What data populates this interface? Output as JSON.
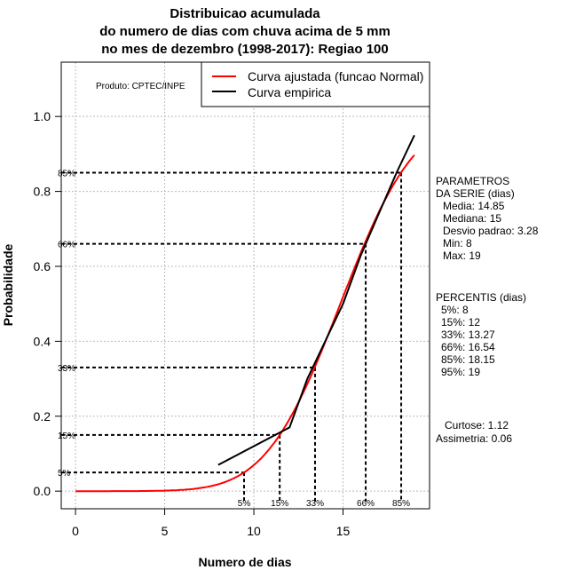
{
  "chart_data": {
    "type": "line",
    "title": [
      "Distribuicao acumulada",
      "do numero de dias com chuva acima de 5 mm",
      "no mes de dezembro (1998-2017): Regiao 100"
    ],
    "xlabel": "Numero de dias",
    "ylabel": "Probabilidade",
    "xlim": [
      -0.8,
      19.85
    ],
    "ylim": [
      -0.047,
      1.145
    ],
    "xticks": [
      0,
      5,
      10,
      15
    ],
    "yticks": [
      "0.0",
      "0.2",
      "0.4",
      "0.6",
      "0.8",
      "1.0"
    ],
    "grid": true,
    "legend_position": "top-right",
    "product_note": "Produto: CPTEC/INPE",
    "series": [
      {
        "name": "Curva ajustada (funcao Normal)",
        "color": "#ff0000",
        "type": "normal_cdf",
        "mean": 14.85,
        "sd": 3.28,
        "x_range": [
          0,
          19
        ]
      },
      {
        "name": "Curva empirica",
        "color": "#000000",
        "x": [
          8,
          12,
          13,
          14,
          15,
          16,
          17,
          18,
          19
        ],
        "y": [
          0.07,
          0.17,
          0.3,
          0.4,
          0.5,
          0.63,
          0.74,
          0.85,
          0.95
        ]
      }
    ],
    "percentile_markers": [
      {
        "label": "5%",
        "x": 9.45,
        "y": 0.05
      },
      {
        "label": "15%",
        "x": 11.45,
        "y": 0.15
      },
      {
        "label": "33%",
        "x": 13.43,
        "y": 0.33
      },
      {
        "label": "66%",
        "x": 16.27,
        "y": 0.66
      },
      {
        "label": "85%",
        "x": 18.26,
        "y": 0.85
      }
    ],
    "side_panel": {
      "params_title": [
        "PARAMETROS",
        "DA SERIE (dias)"
      ],
      "params": [
        "Media: 14.85",
        "Mediana: 15",
        "Desvio padrao: 3.28",
        "Min: 8",
        "Max: 19"
      ],
      "percentis_title": "PERCENTIS (dias)",
      "percentis": [
        "5%: 8",
        "15%: 12",
        "33%: 13.27",
        "66%: 16.54",
        "85%: 18.15",
        "95%: 19"
      ],
      "curtose": "Curtose: 1.12",
      "assimetria": "Assimetria: 0.06"
    }
  }
}
